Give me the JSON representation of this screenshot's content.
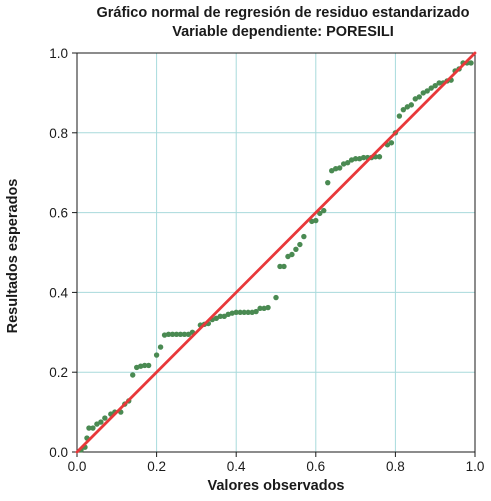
{
  "chart_data": {
    "type": "scatter",
    "title": "Gráfico normal de regresión de residuo estandarizado",
    "subtitle": "Variable dependiente: PORESILI",
    "xlabel": "Valores observados",
    "ylabel": "Resultados esperados",
    "xlim": [
      0.0,
      1.0
    ],
    "ylim": [
      0.0,
      1.0
    ],
    "x_ticks": [
      "0.0",
      "0.2",
      "0.4",
      "0.6",
      "0.8",
      "1.0"
    ],
    "y_ticks": [
      "0.0",
      "0.2",
      "0.4",
      "0.6",
      "0.8",
      "1.0"
    ],
    "grid": true,
    "reference_line": {
      "from": [
        0.0,
        0.0
      ],
      "to": [
        1.0,
        1.0
      ],
      "color": "#e8383a"
    },
    "point_color": "#4a8a52",
    "grid_color": "#a8dadc",
    "points": [
      [
        0.01,
        0.005
      ],
      [
        0.02,
        0.012
      ],
      [
        0.025,
        0.035
      ],
      [
        0.03,
        0.06
      ],
      [
        0.04,
        0.06
      ],
      [
        0.05,
        0.07
      ],
      [
        0.06,
        0.075
      ],
      [
        0.07,
        0.085
      ],
      [
        0.085,
        0.095
      ],
      [
        0.095,
        0.1
      ],
      [
        0.11,
        0.1
      ],
      [
        0.12,
        0.12
      ],
      [
        0.13,
        0.128
      ],
      [
        0.14,
        0.193
      ],
      [
        0.15,
        0.212
      ],
      [
        0.16,
        0.215
      ],
      [
        0.17,
        0.217
      ],
      [
        0.18,
        0.217
      ],
      [
        0.2,
        0.243
      ],
      [
        0.21,
        0.263
      ],
      [
        0.22,
        0.293
      ],
      [
        0.23,
        0.295
      ],
      [
        0.24,
        0.295
      ],
      [
        0.25,
        0.295
      ],
      [
        0.26,
        0.295
      ],
      [
        0.27,
        0.295
      ],
      [
        0.28,
        0.295
      ],
      [
        0.29,
        0.3
      ],
      [
        0.31,
        0.318
      ],
      [
        0.32,
        0.32
      ],
      [
        0.33,
        0.322
      ],
      [
        0.34,
        0.332
      ],
      [
        0.35,
        0.335
      ],
      [
        0.36,
        0.34
      ],
      [
        0.37,
        0.34
      ],
      [
        0.38,
        0.345
      ],
      [
        0.39,
        0.348
      ],
      [
        0.4,
        0.35
      ],
      [
        0.41,
        0.35
      ],
      [
        0.42,
        0.35
      ],
      [
        0.43,
        0.35
      ],
      [
        0.44,
        0.35
      ],
      [
        0.45,
        0.352
      ],
      [
        0.46,
        0.36
      ],
      [
        0.47,
        0.36
      ],
      [
        0.48,
        0.362
      ],
      [
        0.5,
        0.387
      ],
      [
        0.51,
        0.465
      ],
      [
        0.52,
        0.465
      ],
      [
        0.53,
        0.49
      ],
      [
        0.54,
        0.495
      ],
      [
        0.55,
        0.508
      ],
      [
        0.56,
        0.52
      ],
      [
        0.57,
        0.54
      ],
      [
        0.59,
        0.578
      ],
      [
        0.6,
        0.58
      ],
      [
        0.61,
        0.598
      ],
      [
        0.62,
        0.605
      ],
      [
        0.63,
        0.675
      ],
      [
        0.64,
        0.705
      ],
      [
        0.65,
        0.71
      ],
      [
        0.66,
        0.712
      ],
      [
        0.67,
        0.722
      ],
      [
        0.68,
        0.725
      ],
      [
        0.69,
        0.732
      ],
      [
        0.7,
        0.735
      ],
      [
        0.71,
        0.735
      ],
      [
        0.72,
        0.738
      ],
      [
        0.73,
        0.738
      ],
      [
        0.74,
        0.738
      ],
      [
        0.75,
        0.74
      ],
      [
        0.76,
        0.74
      ],
      [
        0.78,
        0.77
      ],
      [
        0.79,
        0.775
      ],
      [
        0.8,
        0.8
      ],
      [
        0.81,
        0.842
      ],
      [
        0.82,
        0.858
      ],
      [
        0.83,
        0.865
      ],
      [
        0.84,
        0.87
      ],
      [
        0.85,
        0.885
      ],
      [
        0.86,
        0.89
      ],
      [
        0.87,
        0.9
      ],
      [
        0.88,
        0.905
      ],
      [
        0.89,
        0.912
      ],
      [
        0.9,
        0.918
      ],
      [
        0.91,
        0.925
      ],
      [
        0.92,
        0.925
      ],
      [
        0.93,
        0.93
      ],
      [
        0.94,
        0.932
      ],
      [
        0.95,
        0.955
      ],
      [
        0.96,
        0.96
      ],
      [
        0.97,
        0.975
      ],
      [
        0.98,
        0.975
      ],
      [
        0.99,
        0.975
      ]
    ]
  }
}
